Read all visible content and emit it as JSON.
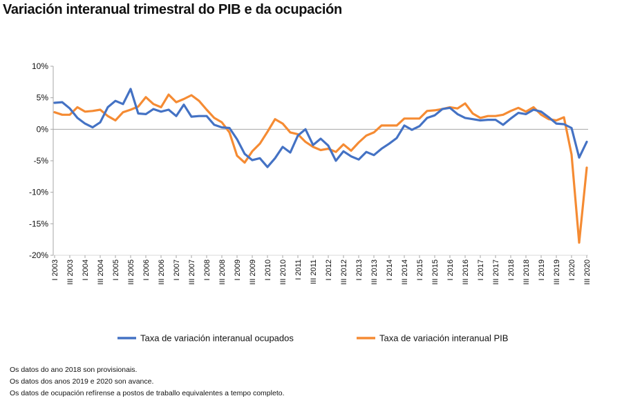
{
  "chart_data": {
    "type": "line",
    "title": "Variación interanual trimestral do PIB e da ocupación",
    "ylim": [
      -20,
      10
    ],
    "y_ticks": [
      10,
      5,
      0,
      -5,
      -10,
      -15,
      -20
    ],
    "y_tick_suffix": "%",
    "grid": false,
    "zero_line": true,
    "legend_position": "bottom",
    "x_ticks": [
      "I 2003",
      "III 2003",
      "I 2004",
      "III 2004",
      "I 2005",
      "III 2005",
      "I 2006",
      "III 2006",
      "I 2007",
      "III 2007",
      "I 2008",
      "III 2008",
      "I 2009",
      "III 2009",
      "I 2010",
      "III 2010",
      "I 2011",
      "III 2011",
      "I 2012",
      "III 2012",
      "I 2013",
      "III 2013",
      "I 2014",
      "III 2014",
      "I 2015",
      "III 2015",
      "I 2016",
      "III 2016",
      "I 2017",
      "III 2017",
      "I 2018",
      "III 2018",
      "I 2019",
      "III 2019",
      "I 2020",
      "III 2020"
    ],
    "series": [
      {
        "name": "Taxa de variación interanual ocupados",
        "color": "#4472C4",
        "values": [
          4.2,
          4.3,
          3.3,
          1.8,
          0.9,
          0.3,
          1.1,
          3.5,
          4.5,
          4.0,
          6.4,
          2.5,
          2.4,
          3.2,
          2.8,
          3.1,
          2.1,
          3.9,
          2.0,
          2.1,
          2.1,
          0.7,
          0.3,
          0.2,
          -1.6,
          -3.9,
          -4.9,
          -4.6,
          -6.0,
          -4.6,
          -2.8,
          -3.7,
          -1.0,
          0.0,
          -2.5,
          -1.5,
          -2.6,
          -5.0,
          -3.5,
          -4.3,
          -4.8,
          -3.6,
          -4.1,
          -3.1,
          -2.3,
          -1.4,
          0.6,
          -0.1,
          0.5,
          1.8,
          2.2,
          3.2,
          3.4,
          2.4,
          1.8,
          1.6,
          1.4,
          1.5,
          1.5,
          0.7,
          1.7,
          2.6,
          2.4,
          3.1,
          2.8,
          1.9,
          0.9,
          0.8,
          0.2,
          -4.5,
          -2.0
        ]
      },
      {
        "name": "Taxa de variación interanual PIB",
        "color": "#F58B33",
        "values": [
          2.7,
          2.3,
          2.3,
          3.5,
          2.8,
          2.9,
          3.1,
          2.1,
          1.4,
          2.7,
          3.1,
          3.6,
          5.1,
          4.0,
          3.5,
          5.5,
          4.3,
          4.8,
          5.4,
          4.5,
          3.1,
          1.8,
          1.1,
          -0.5,
          -4.2,
          -5.3,
          -3.5,
          -2.3,
          -0.4,
          1.6,
          0.9,
          -0.5,
          -0.8,
          -2.0,
          -2.8,
          -3.3,
          -3.1,
          -3.6,
          -2.4,
          -3.4,
          -2.1,
          -1.0,
          -0.5,
          0.6,
          0.6,
          0.6,
          1.7,
          1.7,
          1.7,
          2.9,
          3.0,
          3.2,
          3.5,
          3.3,
          4.1,
          2.5,
          1.8,
          2.1,
          2.1,
          2.3,
          2.9,
          3.4,
          2.8,
          3.5,
          2.3,
          1.6,
          1.4,
          1.9,
          -4.0,
          -18.0,
          -6.1
        ]
      }
    ]
  },
  "notes": [
    "Os datos do ano 2018 son provisionais.",
    "Os datos dos anos 2019 e 2020 son avance.",
    "Os datos de ocupación refírense a postos de traballo equivalentes  a tempo completo."
  ]
}
